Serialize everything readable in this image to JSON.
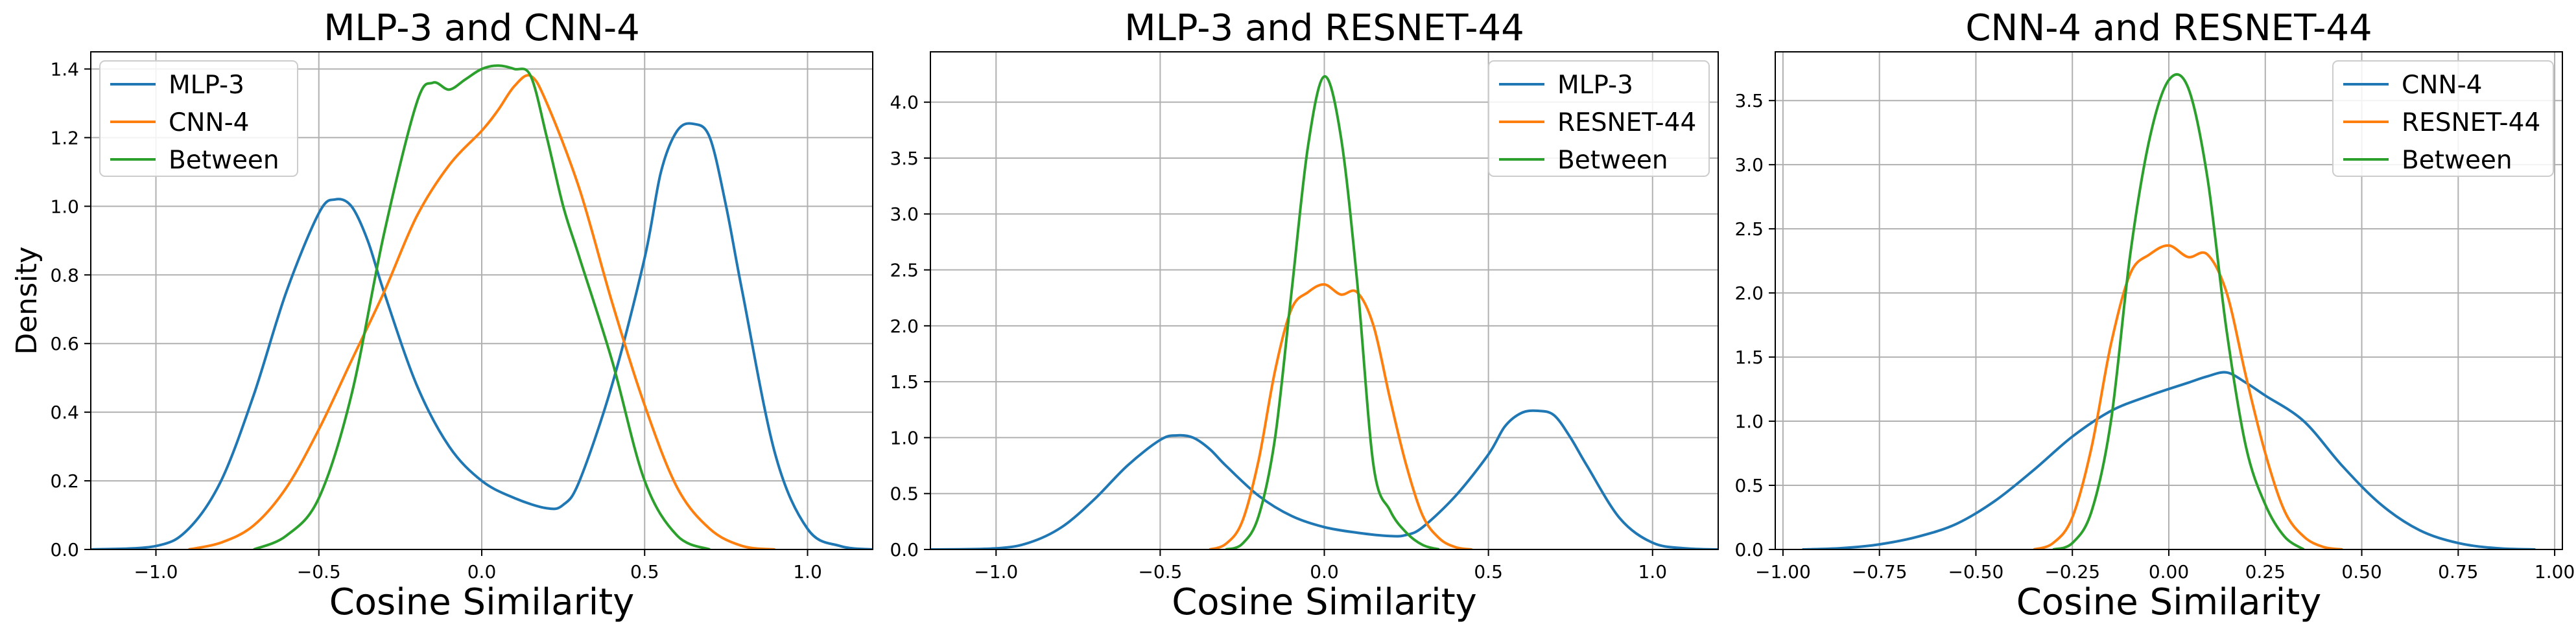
{
  "colors": {
    "blue": "#1f77b4",
    "orange": "#ff7f0e",
    "green": "#2ca02c",
    "grid": "#b0b0b0"
  },
  "chart_data": [
    {
      "type": "line",
      "title": "MLP-3 and CNN-4",
      "xlabel": "Cosine Similarity",
      "ylabel": "Density",
      "xlim": [
        -1.2,
        1.2
      ],
      "ylim": [
        0,
        1.45
      ],
      "xticks": [
        -1.0,
        -0.5,
        0.0,
        0.5,
        1.0
      ],
      "xtick_labels": [
        "−1.0",
        "−0.5",
        "0.0",
        "0.5",
        "1.0"
      ],
      "yticks": [
        0,
        0.2,
        0.4,
        0.6,
        0.8,
        1.0,
        1.2,
        1.4
      ],
      "ytick_labels": [
        "0.0",
        "0.2",
        "0.4",
        "0.6",
        "0.8",
        "1.0",
        "1.2",
        "1.4"
      ],
      "grid": true,
      "legend": "upper left",
      "series": [
        {
          "name": "MLP-3",
          "color": "#1f77b4",
          "x": [
            -1.2,
            -1.0,
            -0.9,
            -0.8,
            -0.7,
            -0.6,
            -0.5,
            -0.45,
            -0.4,
            -0.35,
            -0.3,
            -0.2,
            -0.1,
            0.0,
            0.1,
            0.2,
            0.25,
            0.3,
            0.4,
            0.5,
            0.55,
            0.6,
            0.65,
            0.7,
            0.75,
            0.8,
            0.9,
            1.0,
            1.1,
            1.2
          ],
          "y": [
            0.0,
            0.01,
            0.06,
            0.2,
            0.45,
            0.75,
            0.98,
            1.02,
            1.0,
            0.9,
            0.75,
            0.48,
            0.3,
            0.2,
            0.15,
            0.12,
            0.13,
            0.2,
            0.48,
            0.85,
            1.1,
            1.22,
            1.24,
            1.2,
            1.0,
            0.75,
            0.28,
            0.06,
            0.01,
            0.0
          ]
        },
        {
          "name": "CNN-4",
          "color": "#ff7f0e",
          "x": [
            -0.9,
            -0.8,
            -0.7,
            -0.6,
            -0.5,
            -0.4,
            -0.3,
            -0.2,
            -0.1,
            0.0,
            0.05,
            0.1,
            0.15,
            0.2,
            0.3,
            0.4,
            0.5,
            0.6,
            0.7,
            0.8,
            0.9
          ],
          "y": [
            0.0,
            0.02,
            0.07,
            0.18,
            0.35,
            0.55,
            0.75,
            0.97,
            1.12,
            1.22,
            1.28,
            1.35,
            1.38,
            1.3,
            1.05,
            0.72,
            0.42,
            0.18,
            0.06,
            0.01,
            0.0
          ]
        },
        {
          "name": "Between",
          "color": "#2ca02c",
          "x": [
            -0.7,
            -0.6,
            -0.5,
            -0.4,
            -0.3,
            -0.2,
            -0.15,
            -0.1,
            -0.05,
            0.0,
            0.05,
            0.1,
            0.15,
            0.2,
            0.25,
            0.3,
            0.4,
            0.5,
            0.6,
            0.7
          ],
          "y": [
            0.0,
            0.04,
            0.15,
            0.45,
            0.92,
            1.3,
            1.36,
            1.34,
            1.37,
            1.4,
            1.41,
            1.4,
            1.38,
            1.2,
            1.0,
            0.85,
            0.55,
            0.2,
            0.04,
            0.0
          ]
        }
      ]
    },
    {
      "type": "line",
      "title": "MLP-3 and RESNET-44",
      "xlabel": "Cosine Similarity",
      "ylabel": "",
      "xlim": [
        -1.2,
        1.2
      ],
      "ylim": [
        0,
        4.45
      ],
      "xticks": [
        -1.0,
        -0.5,
        0.0,
        0.5,
        1.0
      ],
      "xtick_labels": [
        "−1.0",
        "−0.5",
        "0.0",
        "0.5",
        "1.0"
      ],
      "yticks": [
        0,
        0.5,
        1.0,
        1.5,
        2.0,
        2.5,
        3.0,
        3.5,
        4.0
      ],
      "ytick_labels": [
        "0.0",
        "0.5",
        "1.0",
        "1.5",
        "2.0",
        "2.5",
        "3.0",
        "3.5",
        "4.0"
      ],
      "grid": true,
      "legend": "upper right",
      "series": [
        {
          "name": "MLP-3",
          "color": "#1f77b4",
          "x": [
            -1.2,
            -1.0,
            -0.9,
            -0.8,
            -0.7,
            -0.6,
            -0.5,
            -0.45,
            -0.4,
            -0.35,
            -0.3,
            -0.2,
            -0.1,
            0.0,
            0.1,
            0.2,
            0.25,
            0.3,
            0.4,
            0.5,
            0.55,
            0.6,
            0.65,
            0.7,
            0.75,
            0.8,
            0.9,
            1.0,
            1.1,
            1.2
          ],
          "y": [
            0.0,
            0.01,
            0.06,
            0.2,
            0.45,
            0.75,
            0.98,
            1.02,
            1.0,
            0.9,
            0.75,
            0.48,
            0.3,
            0.2,
            0.15,
            0.12,
            0.13,
            0.2,
            0.48,
            0.85,
            1.1,
            1.22,
            1.24,
            1.2,
            1.0,
            0.75,
            0.28,
            0.06,
            0.01,
            0.0
          ]
        },
        {
          "name": "RESNET-44",
          "color": "#ff7f0e",
          "x": [
            -0.35,
            -0.3,
            -0.25,
            -0.2,
            -0.15,
            -0.1,
            -0.05,
            0.0,
            0.05,
            0.1,
            0.15,
            0.2,
            0.25,
            0.3,
            0.35,
            0.4,
            0.45
          ],
          "y": [
            0.0,
            0.05,
            0.25,
            0.8,
            1.6,
            2.15,
            2.3,
            2.37,
            2.28,
            2.3,
            2.0,
            1.35,
            0.75,
            0.3,
            0.1,
            0.02,
            0.0
          ]
        },
        {
          "name": "Between",
          "color": "#2ca02c",
          "x": [
            -0.3,
            -0.25,
            -0.2,
            -0.15,
            -0.1,
            -0.05,
            0.0,
            0.05,
            0.1,
            0.15,
            0.2,
            0.25,
            0.3,
            0.35
          ],
          "y": [
            0.0,
            0.05,
            0.3,
            1.0,
            2.3,
            3.6,
            4.23,
            3.7,
            2.4,
            0.75,
            0.35,
            0.15,
            0.04,
            0.0
          ]
        }
      ]
    },
    {
      "type": "line",
      "title": "CNN-4 and RESNET-44",
      "xlabel": "Cosine Similarity",
      "ylabel": "",
      "xlim": [
        -1.02,
        1.02
      ],
      "ylim": [
        0,
        3.88
      ],
      "xticks": [
        -1.0,
        -0.75,
        -0.5,
        -0.25,
        0.0,
        0.25,
        0.5,
        0.75,
        1.0
      ],
      "xtick_labels": [
        "−1.00",
        "−0.75",
        "−0.50",
        "−0.25",
        "0.00",
        "0.25",
        "0.50",
        "0.75",
        "1.00"
      ],
      "yticks": [
        0,
        0.5,
        1.0,
        1.5,
        2.0,
        2.5,
        3.0,
        3.5
      ],
      "ytick_labels": [
        "0.0",
        "0.5",
        "1.0",
        "1.5",
        "2.0",
        "2.5",
        "3.0",
        "3.5"
      ],
      "grid": true,
      "legend": "upper right",
      "series": [
        {
          "name": "CNN-4",
          "color": "#1f77b4",
          "x": [
            -0.95,
            -0.85,
            -0.75,
            -0.65,
            -0.55,
            -0.45,
            -0.35,
            -0.25,
            -0.15,
            -0.05,
            0.05,
            0.1,
            0.15,
            0.2,
            0.25,
            0.35,
            0.45,
            0.55,
            0.65,
            0.75,
            0.85,
            0.95
          ],
          "y": [
            0.0,
            0.01,
            0.04,
            0.1,
            0.2,
            0.38,
            0.62,
            0.88,
            1.08,
            1.2,
            1.3,
            1.35,
            1.38,
            1.3,
            1.2,
            1.0,
            0.65,
            0.35,
            0.15,
            0.05,
            0.01,
            0.0
          ]
        },
        {
          "name": "RESNET-44",
          "color": "#ff7f0e",
          "x": [
            -0.35,
            -0.3,
            -0.25,
            -0.2,
            -0.15,
            -0.1,
            -0.05,
            0.0,
            0.05,
            0.1,
            0.15,
            0.2,
            0.25,
            0.3,
            0.35,
            0.4,
            0.45
          ],
          "y": [
            0.0,
            0.05,
            0.25,
            0.8,
            1.6,
            2.15,
            2.3,
            2.37,
            2.28,
            2.3,
            2.0,
            1.35,
            0.75,
            0.3,
            0.1,
            0.02,
            0.0
          ]
        },
        {
          "name": "Between",
          "color": "#2ca02c",
          "x": [
            -0.3,
            -0.25,
            -0.2,
            -0.15,
            -0.1,
            -0.05,
            0.0,
            0.05,
            0.1,
            0.15,
            0.2,
            0.25,
            0.3,
            0.35
          ],
          "y": [
            0.0,
            0.05,
            0.3,
            1.0,
            2.3,
            3.2,
            3.66,
            3.6,
            2.9,
            1.7,
            0.8,
            0.35,
            0.1,
            0.0
          ]
        }
      ]
    }
  ]
}
